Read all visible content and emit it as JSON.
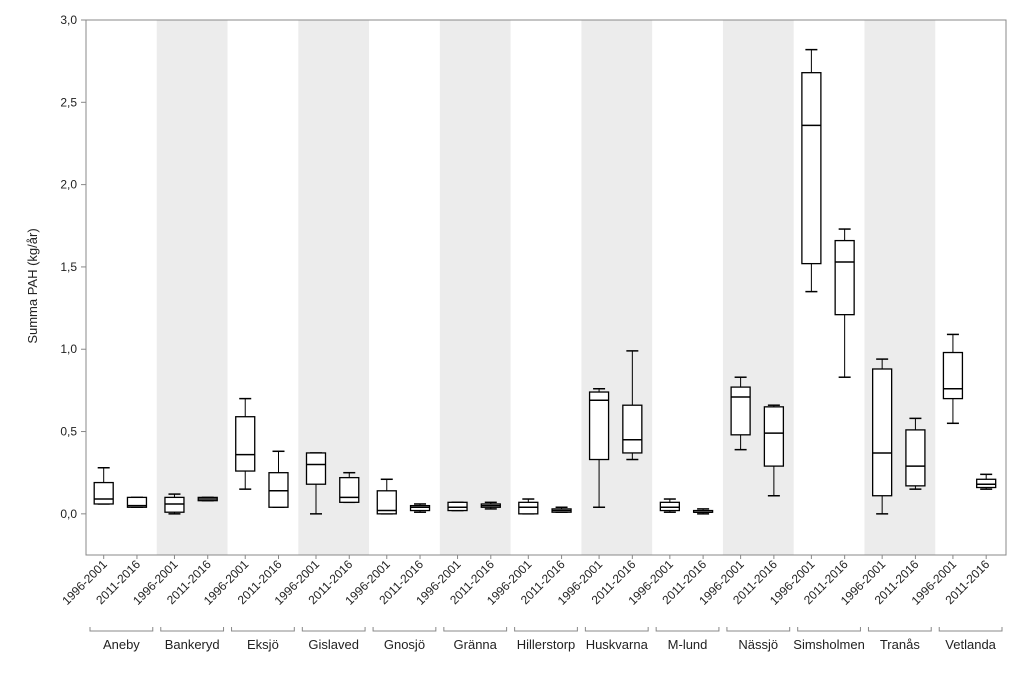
{
  "chart_data": {
    "type": "boxplot",
    "ylabel": "Summa PAH (kg/år)",
    "ylim": [
      -0.25,
      3.0
    ],
    "yticks": [
      0.0,
      0.5,
      1.0,
      1.5,
      2.0,
      2.5,
      3.0
    ],
    "ytick_labels": [
      "0,0",
      "0,5",
      "1,0",
      "1,5",
      "2,0",
      "2,5",
      "3,0"
    ],
    "period_labels": [
      "1996-2001",
      "2011-2016"
    ],
    "band_color": "#ececec",
    "groups": [
      {
        "name": "Aneby",
        "shaded": false,
        "boxes": [
          {
            "period": "1996-2001",
            "min": 0.06,
            "q1": 0.06,
            "median": 0.09,
            "q3": 0.19,
            "max": 0.28
          },
          {
            "period": "2011-2016",
            "min": 0.04,
            "q1": 0.04,
            "median": 0.05,
            "q3": 0.1,
            "max": 0.1
          }
        ]
      },
      {
        "name": "Bankeryd",
        "shaded": true,
        "boxes": [
          {
            "period": "1996-2001",
            "min": 0.0,
            "q1": 0.01,
            "median": 0.06,
            "q3": 0.1,
            "max": 0.12
          },
          {
            "period": "2011-2016",
            "min": 0.08,
            "q1": 0.08,
            "median": 0.09,
            "q3": 0.1,
            "max": 0.1
          }
        ]
      },
      {
        "name": "Eksjö",
        "shaded": false,
        "boxes": [
          {
            "period": "1996-2001",
            "min": 0.15,
            "q1": 0.26,
            "median": 0.36,
            "q3": 0.59,
            "max": 0.7
          },
          {
            "period": "2011-2016",
            "min": 0.04,
            "q1": 0.04,
            "median": 0.14,
            "q3": 0.25,
            "max": 0.38
          }
        ]
      },
      {
        "name": "Gislaved",
        "shaded": true,
        "boxes": [
          {
            "period": "1996-2001",
            "min": 0.0,
            "q1": 0.18,
            "median": 0.3,
            "q3": 0.37,
            "max": 0.37
          },
          {
            "period": "2011-2016",
            "min": 0.07,
            "q1": 0.07,
            "median": 0.1,
            "q3": 0.22,
            "max": 0.25
          }
        ]
      },
      {
        "name": "Gnosjö",
        "shaded": false,
        "boxes": [
          {
            "period": "1996-2001",
            "min": 0.0,
            "q1": 0.0,
            "median": 0.02,
            "q3": 0.14,
            "max": 0.21
          },
          {
            "period": "2011-2016",
            "min": 0.01,
            "q1": 0.02,
            "median": 0.04,
            "q3": 0.05,
            "max": 0.06
          }
        ]
      },
      {
        "name": "Gränna",
        "shaded": true,
        "boxes": [
          {
            "period": "1996-2001",
            "min": 0.02,
            "q1": 0.02,
            "median": 0.04,
            "q3": 0.07,
            "max": 0.07
          },
          {
            "period": "2011-2016",
            "min": 0.03,
            "q1": 0.04,
            "median": 0.05,
            "q3": 0.06,
            "max": 0.07
          }
        ]
      },
      {
        "name": "Hillerstorp",
        "shaded": false,
        "boxes": [
          {
            "period": "1996-2001",
            "min": 0.0,
            "q1": 0.0,
            "median": 0.04,
            "q3": 0.07,
            "max": 0.09
          },
          {
            "period": "2011-2016",
            "min": 0.01,
            "q1": 0.01,
            "median": 0.02,
            "q3": 0.03,
            "max": 0.04
          }
        ]
      },
      {
        "name": "Huskvarna",
        "shaded": true,
        "boxes": [
          {
            "period": "1996-2001",
            "min": 0.04,
            "q1": 0.33,
            "median": 0.69,
            "q3": 0.74,
            "max": 0.76
          },
          {
            "period": "2011-2016",
            "min": 0.33,
            "q1": 0.37,
            "median": 0.45,
            "q3": 0.66,
            "max": 0.99
          }
        ]
      },
      {
        "name": "M-lund",
        "shaded": false,
        "boxes": [
          {
            "period": "1996-2001",
            "min": 0.01,
            "q1": 0.02,
            "median": 0.04,
            "q3": 0.07,
            "max": 0.09
          },
          {
            "period": "2011-2016",
            "min": 0.0,
            "q1": 0.01,
            "median": 0.01,
            "q3": 0.02,
            "max": 0.03
          }
        ]
      },
      {
        "name": "Nässjö",
        "shaded": true,
        "boxes": [
          {
            "period": "1996-2001",
            "min": 0.39,
            "q1": 0.48,
            "median": 0.71,
            "q3": 0.77,
            "max": 0.83
          },
          {
            "period": "2011-2016",
            "min": 0.11,
            "q1": 0.29,
            "median": 0.49,
            "q3": 0.65,
            "max": 0.66
          }
        ]
      },
      {
        "name": "Simsholmen",
        "shaded": false,
        "boxes": [
          {
            "period": "1996-2001",
            "min": 1.35,
            "q1": 1.52,
            "median": 2.36,
            "q3": 2.68,
            "max": 2.82
          },
          {
            "period": "2011-2016",
            "min": 0.83,
            "q1": 1.21,
            "median": 1.53,
            "q3": 1.66,
            "max": 1.73
          }
        ]
      },
      {
        "name": "Tranås",
        "shaded": true,
        "boxes": [
          {
            "period": "1996-2001",
            "min": 0.0,
            "q1": 0.11,
            "median": 0.37,
            "q3": 0.88,
            "max": 0.94
          },
          {
            "period": "2011-2016",
            "min": 0.15,
            "q1": 0.17,
            "median": 0.29,
            "q3": 0.51,
            "max": 0.58
          }
        ]
      },
      {
        "name": "Vetlanda",
        "shaded": false,
        "boxes": [
          {
            "period": "1996-2001",
            "min": 0.55,
            "q1": 0.7,
            "median": 0.76,
            "q3": 0.98,
            "max": 1.09
          },
          {
            "period": "2011-2016",
            "min": 0.15,
            "q1": 0.16,
            "median": 0.18,
            "q3": 0.21,
            "max": 0.24
          }
        ]
      }
    ]
  }
}
